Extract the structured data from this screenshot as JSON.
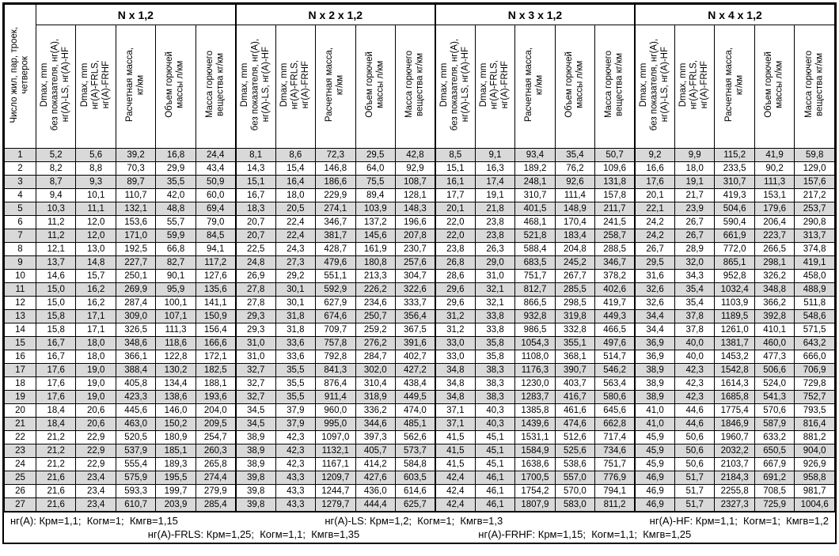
{
  "table": {
    "row_axis_header_lines": [
      "Число жил, пар, троек,",
      "четверок"
    ],
    "groups": [
      {
        "title": "N x 1,2"
      },
      {
        "title": "N x 2 x 1,2"
      },
      {
        "title": "N x 3 x 1,2"
      },
      {
        "title": "N x 4 x 1,2"
      }
    ],
    "column_headers": [
      [
        "Dmax, mm",
        "без показателя, нг(А),",
        "нг(А)-LS, нг(А)-HF"
      ],
      [
        "Dmax, mm",
        "нг(А)-FRLS,",
        "нг(А)-FRHF"
      ],
      [
        "Расчетная масса,",
        "кг/км"
      ],
      [
        "Объем горючей",
        "массы л/км"
      ],
      [
        "Масса горючего",
        "вещества кг/км"
      ]
    ],
    "rows": [
      {
        "n": "1",
        "values": [
          "5,2",
          "5,6",
          "39,2",
          "16,8",
          "24,4",
          "8,1",
          "8,6",
          "72,3",
          "29,5",
          "42,8",
          "8,5",
          "9,1",
          "93,4",
          "35,4",
          "50,7",
          "9,2",
          "9,9",
          "115,2",
          "41,9",
          "59,8"
        ]
      },
      {
        "n": "2",
        "values": [
          "8,2",
          "8,8",
          "70,3",
          "29,9",
          "43,4",
          "14,3",
          "15,4",
          "146,8",
          "64,0",
          "92,9",
          "15,1",
          "16,3",
          "189,2",
          "76,2",
          "109,6",
          "16,6",
          "18,0",
          "233,5",
          "90,2",
          "129,0"
        ]
      },
      {
        "n": "3",
        "values": [
          "8,7",
          "9,3",
          "89,7",
          "35,5",
          "50,9",
          "15,1",
          "16,4",
          "186,6",
          "75,5",
          "108,7",
          "16,1",
          "17,4",
          "248,1",
          "92,6",
          "131,8",
          "17,6",
          "19,1",
          "310,7",
          "111,3",
          "157,6"
        ]
      },
      {
        "n": "4",
        "values": [
          "9,4",
          "10,1",
          "110,7",
          "42,0",
          "60,0",
          "16,7",
          "18,0",
          "229,9",
          "89,4",
          "128,1",
          "17,7",
          "19,1",
          "310,7",
          "111,4",
          "157,8",
          "20,1",
          "21,7",
          "419,3",
          "153,1",
          "217,2"
        ]
      },
      {
        "n": "5",
        "values": [
          "10,3",
          "11,1",
          "132,1",
          "48,8",
          "69,4",
          "18,3",
          "20,5",
          "274,1",
          "103,9",
          "148,3",
          "20,1",
          "21,8",
          "401,5",
          "148,9",
          "211,7",
          "22,1",
          "23,9",
          "504,6",
          "179,6",
          "253,7"
        ]
      },
      {
        "n": "6",
        "values": [
          "11,2",
          "12,0",
          "153,6",
          "55,7",
          "79,0",
          "20,7",
          "22,4",
          "346,7",
          "137,2",
          "196,6",
          "22,0",
          "23,8",
          "468,1",
          "170,4",
          "241,5",
          "24,2",
          "26,7",
          "590,4",
          "206,4",
          "290,8"
        ]
      },
      {
        "n": "7",
        "values": [
          "11,2",
          "12,0",
          "171,0",
          "59,9",
          "84,5",
          "20,7",
          "22,4",
          "381,7",
          "145,6",
          "207,8",
          "22,0",
          "23,8",
          "521,8",
          "183,4",
          "258,7",
          "24,2",
          "26,7",
          "661,9",
          "223,7",
          "313,7"
        ]
      },
      {
        "n": "8",
        "values": [
          "12,1",
          "13,0",
          "192,5",
          "66,8",
          "94,1",
          "22,5",
          "24,3",
          "428,7",
          "161,9",
          "230,7",
          "23,8",
          "26,3",
          "588,4",
          "204,8",
          "288,5",
          "26,7",
          "28,9",
          "772,0",
          "266,5",
          "374,8"
        ]
      },
      {
        "n": "9",
        "values": [
          "13,7",
          "14,8",
          "227,7",
          "82,7",
          "117,2",
          "24,8",
          "27,3",
          "479,6",
          "180,8",
          "257,6",
          "26,8",
          "29,0",
          "683,5",
          "245,2",
          "346,7",
          "29,5",
          "32,0",
          "865,1",
          "298,1",
          "419,1"
        ]
      },
      {
        "n": "10",
        "values": [
          "14,6",
          "15,7",
          "250,1",
          "90,1",
          "127,6",
          "26,9",
          "29,2",
          "551,1",
          "213,3",
          "304,7",
          "28,6",
          "31,0",
          "751,7",
          "267,7",
          "378,2",
          "31,6",
          "34,3",
          "952,8",
          "326,2",
          "458,0"
        ]
      },
      {
        "n": "11",
        "values": [
          "15,0",
          "16,2",
          "269,9",
          "95,9",
          "135,6",
          "27,8",
          "30,1",
          "592,9",
          "226,2",
          "322,6",
          "29,6",
          "32,1",
          "812,7",
          "285,5",
          "402,6",
          "32,6",
          "35,4",
          "1032,4",
          "348,8",
          "488,9"
        ]
      },
      {
        "n": "12",
        "values": [
          "15,0",
          "16,2",
          "287,4",
          "100,1",
          "141,1",
          "27,8",
          "30,1",
          "627,9",
          "234,6",
          "333,7",
          "29,6",
          "32,1",
          "866,5",
          "298,5",
          "419,7",
          "32,6",
          "35,4",
          "1103,9",
          "366,2",
          "511,8"
        ]
      },
      {
        "n": "13",
        "values": [
          "15,8",
          "17,1",
          "309,0",
          "107,1",
          "150,9",
          "29,3",
          "31,8",
          "674,6",
          "250,7",
          "356,4",
          "31,2",
          "33,8",
          "932,8",
          "319,8",
          "449,3",
          "34,4",
          "37,8",
          "1189,5",
          "392,8",
          "548,6"
        ]
      },
      {
        "n": "14",
        "values": [
          "15,8",
          "17,1",
          "326,5",
          "111,3",
          "156,4",
          "29,3",
          "31,8",
          "709,7",
          "259,2",
          "367,5",
          "31,2",
          "33,8",
          "986,5",
          "332,8",
          "466,5",
          "34,4",
          "37,8",
          "1261,0",
          "410,1",
          "571,5"
        ]
      },
      {
        "n": "15",
        "values": [
          "16,7",
          "18,0",
          "348,6",
          "118,6",
          "166,6",
          "31,0",
          "33,6",
          "757,8",
          "276,2",
          "391,6",
          "33,0",
          "35,8",
          "1054,3",
          "355,1",
          "497,6",
          "36,9",
          "40,0",
          "1381,7",
          "460,0",
          "643,2"
        ]
      },
      {
        "n": "16",
        "values": [
          "16,7",
          "18,0",
          "366,1",
          "122,8",
          "172,1",
          "31,0",
          "33,6",
          "792,8",
          "284,7",
          "402,7",
          "33,0",
          "35,8",
          "1108,0",
          "368,1",
          "514,7",
          "36,9",
          "40,0",
          "1453,2",
          "477,3",
          "666,0"
        ]
      },
      {
        "n": "17",
        "values": [
          "17,6",
          "19,0",
          "388,4",
          "130,2",
          "182,5",
          "32,7",
          "35,5",
          "841,3",
          "302,0",
          "427,2",
          "34,8",
          "38,3",
          "1176,3",
          "390,7",
          "546,2",
          "38,9",
          "42,3",
          "1542,8",
          "506,6",
          "706,9"
        ]
      },
      {
        "n": "18",
        "values": [
          "17,6",
          "19,0",
          "405,8",
          "134,4",
          "188,1",
          "32,7",
          "35,5",
          "876,4",
          "310,4",
          "438,4",
          "34,8",
          "38,3",
          "1230,0",
          "403,7",
          "563,4",
          "38,9",
          "42,3",
          "1614,3",
          "524,0",
          "729,8"
        ]
      },
      {
        "n": "19",
        "values": [
          "17,6",
          "19,0",
          "423,3",
          "138,6",
          "193,6",
          "32,7",
          "35,5",
          "911,4",
          "318,9",
          "449,5",
          "34,8",
          "38,3",
          "1283,7",
          "416,7",
          "580,6",
          "38,9",
          "42,3",
          "1685,8",
          "541,3",
          "752,7"
        ]
      },
      {
        "n": "20",
        "values": [
          "18,4",
          "20,6",
          "445,6",
          "146,0",
          "204,0",
          "34,5",
          "37,9",
          "960,0",
          "336,2",
          "474,0",
          "37,1",
          "40,3",
          "1385,8",
          "461,6",
          "645,6",
          "41,0",
          "44,6",
          "1775,4",
          "570,6",
          "793,5"
        ]
      },
      {
        "n": "21",
        "values": [
          "18,4",
          "20,6",
          "463,0",
          "150,2",
          "209,5",
          "34,5",
          "37,9",
          "995,0",
          "344,6",
          "485,1",
          "37,1",
          "40,3",
          "1439,6",
          "474,6",
          "662,8",
          "41,0",
          "44,6",
          "1846,9",
          "587,9",
          "816,4"
        ]
      },
      {
        "n": "22",
        "values": [
          "21,2",
          "22,9",
          "520,5",
          "180,9",
          "254,7",
          "38,9",
          "42,3",
          "1097,0",
          "397,3",
          "562,6",
          "41,5",
          "45,1",
          "1531,1",
          "512,6",
          "717,4",
          "45,9",
          "50,6",
          "1960,7",
          "633,2",
          "881,2"
        ]
      },
      {
        "n": "23",
        "values": [
          "21,2",
          "22,9",
          "537,9",
          "185,1",
          "260,3",
          "38,9",
          "42,3",
          "1132,1",
          "405,7",
          "573,7",
          "41,5",
          "45,1",
          "1584,9",
          "525,6",
          "734,6",
          "45,9",
          "50,6",
          "2032,2",
          "650,5",
          "904,0"
        ]
      },
      {
        "n": "24",
        "values": [
          "21,2",
          "22,9",
          "555,4",
          "189,3",
          "265,8",
          "38,9",
          "42,3",
          "1167,1",
          "414,2",
          "584,8",
          "41,5",
          "45,1",
          "1638,6",
          "538,6",
          "751,7",
          "45,9",
          "50,6",
          "2103,7",
          "667,9",
          "926,9"
        ]
      },
      {
        "n": "25",
        "values": [
          "21,6",
          "23,4",
          "575,9",
          "195,5",
          "274,4",
          "39,8",
          "43,3",
          "1209,7",
          "427,6",
          "603,5",
          "42,4",
          "46,1",
          "1700,5",
          "557,0",
          "776,9",
          "46,9",
          "51,7",
          "2184,3",
          "691,2",
          "958,8"
        ]
      },
      {
        "n": "26",
        "values": [
          "21,6",
          "23,4",
          "593,3",
          "199,7",
          "279,9",
          "39,8",
          "43,3",
          "1244,7",
          "436,0",
          "614,6",
          "42,4",
          "46,1",
          "1754,2",
          "570,0",
          "794,1",
          "46,9",
          "51,7",
          "2255,8",
          "708,5",
          "981,7"
        ]
      },
      {
        "n": "27",
        "values": [
          "21,6",
          "23,4",
          "610,7",
          "203,9",
          "285,4",
          "39,8",
          "43,3",
          "1279,7",
          "444,4",
          "625,7",
          "42,4",
          "46,1",
          "1807,9",
          "583,0",
          "811,2",
          "46,9",
          "51,7",
          "2327,3",
          "725,9",
          "1004,6"
        ]
      }
    ],
    "footnotes": {
      "line1": [
        "нг(А): Крм=1,1;  Когм=1;  Кмгв=1,15",
        "нг(А)-LS: Крм=1,2;  Когм=1;  Кмгв=1,3",
        "нг(А)-HF: Крм=1,1;  Когм=1;  Кмгв=1,2"
      ],
      "line2": [
        "нг(А)-FRLS: Крм=1,25;  Когм=1,1;  Кмгв=1,35",
        "нг(А)-FRHF: Крм=1,15;  Когм=1,1;  Кмгв=1,25"
      ]
    }
  },
  "colors": {
    "stripe_gray": "#d9d9d9",
    "border": "#000000",
    "background": "#ffffff",
    "text": "#000000"
  }
}
